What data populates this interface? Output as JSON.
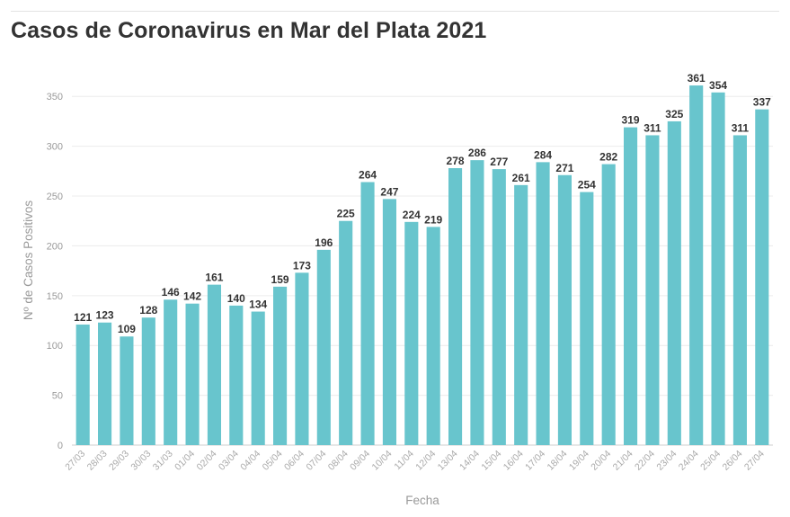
{
  "header": {
    "title": "Casos de Coronavirus en Mar del Plata 2021"
  },
  "colors": {
    "bar": "#68c5cd",
    "grid": "#ececec",
    "text": "#333333",
    "axis_text": "#9a9a9a"
  },
  "chart_data": {
    "type": "bar",
    "title": "Casos de Coronavirus en Mar del Plata 2021",
    "xlabel": "Fecha",
    "ylabel": "Nº de Casos Positivos",
    "ylim": [
      0,
      380
    ],
    "yticks": [
      0,
      50,
      100,
      150,
      200,
      250,
      300,
      350
    ],
    "grid": "horizontal",
    "legend": "none",
    "categories": [
      "27/03",
      "28/03",
      "29/03",
      "30/03",
      "31/03",
      "01/04",
      "02/04",
      "03/04",
      "04/04",
      "05/04",
      "06/04",
      "07/04",
      "08/04",
      "09/04",
      "10/04",
      "11/04",
      "12/04",
      "13/04",
      "14/04",
      "15/04",
      "16/04",
      "17/04",
      "18/04",
      "19/04",
      "20/04",
      "21/04",
      "22/04",
      "23/04",
      "24/04",
      "25/04",
      "26/04",
      "27/04"
    ],
    "values": [
      121,
      123,
      109,
      128,
      146,
      142,
      161,
      140,
      134,
      159,
      173,
      196,
      225,
      264,
      247,
      224,
      219,
      278,
      286,
      277,
      261,
      284,
      271,
      254,
      282,
      319,
      311,
      325,
      361,
      354,
      311,
      337
    ]
  }
}
